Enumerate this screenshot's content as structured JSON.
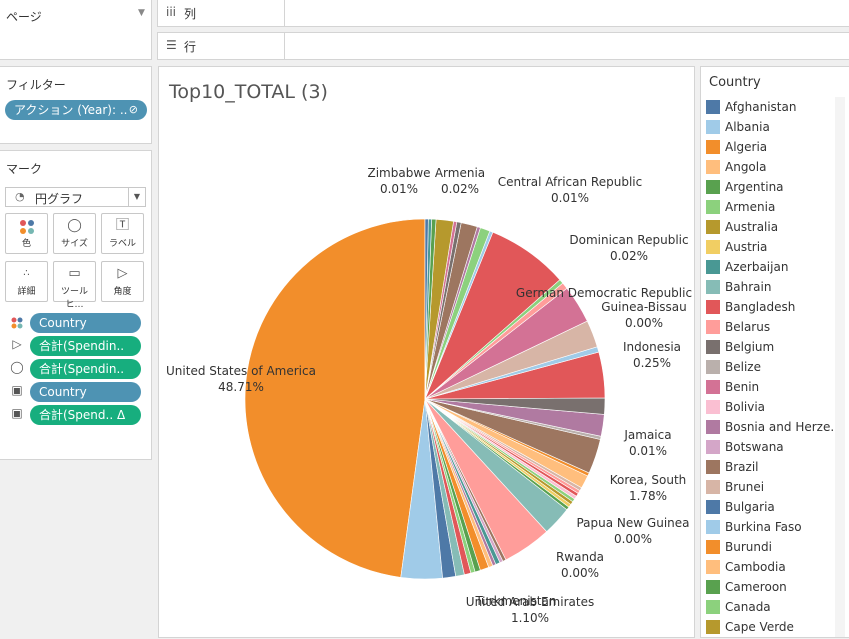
{
  "left": {
    "pages_label": "ページ",
    "filters_label": "フィルター",
    "filter_pill": "アクション (Year): ..",
    "marks_label": "マーク",
    "mark_type": "円グラフ",
    "buttons": [
      "色",
      "サイズ",
      "ラベル",
      "詳細",
      "ツールヒ…",
      "角度"
    ],
    "pills": [
      "Country",
      "合計(Spendin..",
      "合計(Spendin..",
      "Country",
      "合計(Spend.. Δ"
    ]
  },
  "shelves": {
    "columns": "列",
    "rows": "行"
  },
  "view": {
    "title": "Top10_TOTAL (3)"
  },
  "chart_data": {
    "type": "pie",
    "labels": [
      {
        "name": "Zimbabwe",
        "value": "0.01%"
      },
      {
        "name": "Armenia",
        "value": "0.02%"
      },
      {
        "name": "Central African Republic",
        "value": "0.01%"
      },
      {
        "name": "Dominican Republic",
        "value": "0.02%"
      },
      {
        "name": "German Democratic Republic",
        "value": ""
      },
      {
        "name": "Guinea-Bissau",
        "value": "0.00%"
      },
      {
        "name": "Indonesia",
        "value": "0.25%"
      },
      {
        "name": "Jamaica",
        "value": "0.01%"
      },
      {
        "name": "Korea, South",
        "value": "1.78%"
      },
      {
        "name": "Papua New Guinea",
        "value": "0.00%"
      },
      {
        "name": "Rwanda",
        "value": "0.00%"
      },
      {
        "name": "Turkmenistan",
        "value": ""
      },
      {
        "name": "United Arab Emirates",
        "value": "1.10%"
      },
      {
        "name": "United States of America",
        "value": "48.71%"
      }
    ],
    "slices": [
      {
        "color": "#f28e2b",
        "value": 49.0
      },
      {
        "color": "#a0cbe8",
        "value": 3.8
      },
      {
        "color": "#4e79a7",
        "value": 1.2
      },
      {
        "color": "#86bcb6",
        "value": 0.8
      },
      {
        "color": "#e15759",
        "value": 0.6
      },
      {
        "color": "#8cd17d",
        "value": 0.4
      },
      {
        "color": "#59a14f",
        "value": 0.5
      },
      {
        "color": "#f28e2b",
        "value": 0.8
      },
      {
        "color": "#ffbe7d",
        "value": 0.4
      },
      {
        "color": "#b07aa1",
        "value": 0.3
      },
      {
        "color": "#499894",
        "value": 0.4
      },
      {
        "color": "#d4a6c8",
        "value": 0.3
      },
      {
        "color": "#9d7660",
        "value": 0.3
      },
      {
        "color": "#ff9d9a",
        "value": 4.5
      },
      {
        "color": "#86bcb6",
        "value": 2.7
      },
      {
        "color": "#59a14f",
        "value": 0.3
      },
      {
        "color": "#f1ce63",
        "value": 0.3
      },
      {
        "color": "#b6992d",
        "value": 0.3
      },
      {
        "color": "#8cd17d",
        "value": 0.3
      },
      {
        "color": "#fabfd2",
        "value": 0.3
      },
      {
        "color": "#e15759",
        "value": 0.3
      },
      {
        "color": "#ff9d9a",
        "value": 0.3
      },
      {
        "color": "#d7b5a6",
        "value": 0.3
      },
      {
        "color": "#ffbe7d",
        "value": 1.2
      },
      {
        "color": "#f28e2b",
        "value": 0.3
      },
      {
        "color": "#9d7660",
        "value": 3.2
      },
      {
        "color": "#bab0ac",
        "value": 0.3
      },
      {
        "color": "#b07aa1",
        "value": 2.0
      },
      {
        "color": "#79706e",
        "value": 1.5
      },
      {
        "color": "#e15759",
        "value": 4.2
      },
      {
        "color": "#a0cbe8",
        "value": 0.5
      },
      {
        "color": "#d7b5a6",
        "value": 2.5
      },
      {
        "color": "#d37295",
        "value": 3.5
      },
      {
        "color": "#ff9d9a",
        "value": 0.6
      },
      {
        "color": "#8cd17d",
        "value": 0.4
      },
      {
        "color": "#e15759",
        "value": 7.5
      },
      {
        "color": "#a0cbe8",
        "value": 0.3
      },
      {
        "color": "#8cd17d",
        "value": 0.9
      },
      {
        "color": "#b07aa1",
        "value": 0.3
      },
      {
        "color": "#9d7660",
        "value": 1.5
      },
      {
        "color": "#79706e",
        "value": 0.4
      },
      {
        "color": "#d37295",
        "value": 0.3
      },
      {
        "color": "#b6992d",
        "value": 1.6
      },
      {
        "color": "#59a14f",
        "value": 0.4
      },
      {
        "color": "#499894",
        "value": 0.3
      },
      {
        "color": "#4e79a7",
        "value": 0.3
      }
    ]
  },
  "legend": {
    "title": "Country",
    "items": [
      {
        "name": "Afghanistan",
        "color": "#4e79a7"
      },
      {
        "name": "Albania",
        "color": "#a0cbe8"
      },
      {
        "name": "Algeria",
        "color": "#f28e2b"
      },
      {
        "name": "Angola",
        "color": "#ffbe7d"
      },
      {
        "name": "Argentina",
        "color": "#59a14f"
      },
      {
        "name": "Armenia",
        "color": "#8cd17d"
      },
      {
        "name": "Australia",
        "color": "#b6992d"
      },
      {
        "name": "Austria",
        "color": "#f1ce63"
      },
      {
        "name": "Azerbaijan",
        "color": "#499894"
      },
      {
        "name": "Bahrain",
        "color": "#86bcb6"
      },
      {
        "name": "Bangladesh",
        "color": "#e15759"
      },
      {
        "name": "Belarus",
        "color": "#ff9d9a"
      },
      {
        "name": "Belgium",
        "color": "#79706e"
      },
      {
        "name": "Belize",
        "color": "#bab0ac"
      },
      {
        "name": "Benin",
        "color": "#d37295"
      },
      {
        "name": "Bolivia",
        "color": "#fabfd2"
      },
      {
        "name": "Bosnia and Herze..",
        "color": "#b07aa1"
      },
      {
        "name": "Botswana",
        "color": "#d4a6c8"
      },
      {
        "name": "Brazil",
        "color": "#9d7660"
      },
      {
        "name": "Brunei",
        "color": "#d7b5a6"
      },
      {
        "name": "Bulgaria",
        "color": "#4e79a7"
      },
      {
        "name": "Burkina Faso",
        "color": "#a0cbe8"
      },
      {
        "name": "Burundi",
        "color": "#f28e2b"
      },
      {
        "name": "Cambodia",
        "color": "#ffbe7d"
      },
      {
        "name": "Cameroon",
        "color": "#59a14f"
      },
      {
        "name": "Canada",
        "color": "#8cd17d"
      },
      {
        "name": "Cape Verde",
        "color": "#b6992d"
      }
    ]
  }
}
